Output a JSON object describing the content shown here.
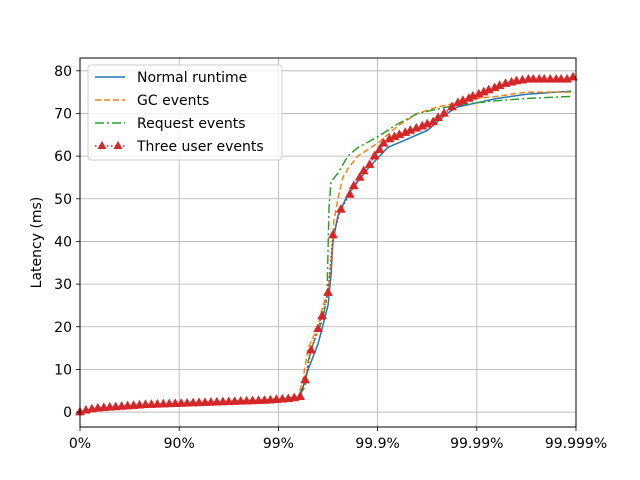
{
  "chart_data": {
    "type": "line",
    "title": "",
    "xlabel": "",
    "ylabel": "Latency (ms)",
    "x_scale": "percentile-log (nines)",
    "xlim": [
      0,
      5
    ],
    "ylim": [
      -3.5,
      83
    ],
    "x_ticks": [
      {
        "value": 0,
        "label": "0%"
      },
      {
        "value": 1,
        "label": "90%"
      },
      {
        "value": 2,
        "label": "99%"
      },
      {
        "value": 3,
        "label": "99.9%"
      },
      {
        "value": 4,
        "label": "99.99%"
      },
      {
        "value": 5,
        "label": "99.999%"
      }
    ],
    "y_ticks": [
      0,
      10,
      20,
      30,
      40,
      50,
      60,
      70,
      80
    ],
    "grid": true,
    "legend": {
      "position": "top-left"
    },
    "series": [
      {
        "name": "Normal runtime",
        "color": "#1f77b4",
        "style": "solid",
        "marker": "none",
        "points": [
          [
            0,
            0
          ],
          [
            0.5,
            1.2
          ],
          [
            1,
            2
          ],
          [
            1.5,
            2.5
          ],
          [
            2,
            3
          ],
          [
            2.2,
            3.5
          ],
          [
            2.25,
            6
          ],
          [
            2.3,
            10
          ],
          [
            2.4,
            16
          ],
          [
            2.5,
            25
          ],
          [
            2.53,
            32
          ],
          [
            2.55,
            40
          ],
          [
            2.6,
            46
          ],
          [
            2.7,
            51
          ],
          [
            2.8,
            54
          ],
          [
            2.9,
            57
          ],
          [
            3.1,
            62
          ],
          [
            3.3,
            64
          ],
          [
            3.5,
            66
          ],
          [
            3.6,
            68
          ],
          [
            3.7,
            70
          ],
          [
            3.8,
            71.5
          ],
          [
            4,
            72.5
          ],
          [
            4.2,
            73.5
          ],
          [
            4.5,
            74.5
          ],
          [
            4.8,
            75
          ],
          [
            4.95,
            75.2
          ]
        ]
      },
      {
        "name": "GC events",
        "color": "#ff7f0e",
        "style": "dashed",
        "marker": "none",
        "points": [
          [
            0,
            0
          ],
          [
            0.5,
            1.2
          ],
          [
            1,
            2
          ],
          [
            1.5,
            2.5
          ],
          [
            2,
            3
          ],
          [
            2.2,
            3.5
          ],
          [
            2.25,
            8
          ],
          [
            2.3,
            15
          ],
          [
            2.4,
            20
          ],
          [
            2.45,
            25
          ],
          [
            2.5,
            28
          ],
          [
            2.53,
            35
          ],
          [
            2.56,
            45
          ],
          [
            2.6,
            50
          ],
          [
            2.65,
            55
          ],
          [
            2.7,
            57
          ],
          [
            2.8,
            60
          ],
          [
            3,
            63
          ],
          [
            3.2,
            67
          ],
          [
            3.4,
            70
          ],
          [
            3.6,
            71.5
          ],
          [
            3.8,
            72.5
          ],
          [
            4,
            73.5
          ],
          [
            4.2,
            74
          ],
          [
            4.5,
            75
          ],
          [
            4.95,
            75
          ]
        ]
      },
      {
        "name": "Request events",
        "color": "#2ca02c",
        "style": "dashdot",
        "marker": "none",
        "points": [
          [
            0,
            0
          ],
          [
            0.5,
            1.2
          ],
          [
            1,
            2
          ],
          [
            1.5,
            2.5
          ],
          [
            2,
            3
          ],
          [
            2.2,
            3.5
          ],
          [
            2.27,
            6
          ],
          [
            2.3,
            12
          ],
          [
            2.35,
            16
          ],
          [
            2.4,
            19
          ],
          [
            2.45,
            22
          ],
          [
            2.49,
            27
          ],
          [
            2.51,
            48
          ],
          [
            2.53,
            54
          ],
          [
            2.6,
            56
          ],
          [
            2.7,
            60
          ],
          [
            2.8,
            62
          ],
          [
            3,
            64.5
          ],
          [
            3.2,
            67.5
          ],
          [
            3.4,
            70
          ],
          [
            3.6,
            71
          ],
          [
            3.8,
            72
          ],
          [
            4,
            72.5
          ],
          [
            4.2,
            73
          ],
          [
            4.5,
            73.5
          ],
          [
            4.95,
            74
          ]
        ]
      },
      {
        "name": "Three user events",
        "color": "#d62728",
        "style": "dotted",
        "marker": "triangle",
        "points": [
          [
            0,
            0
          ],
          [
            0.06,
            0.4
          ],
          [
            0.12,
            0.7
          ],
          [
            0.18,
            0.9
          ],
          [
            0.24,
            1.0
          ],
          [
            0.3,
            1.1
          ],
          [
            0.36,
            1.2
          ],
          [
            0.42,
            1.3
          ],
          [
            0.48,
            1.4
          ],
          [
            0.54,
            1.5
          ],
          [
            0.6,
            1.6
          ],
          [
            0.66,
            1.7
          ],
          [
            0.72,
            1.75
          ],
          [
            0.78,
            1.8
          ],
          [
            0.84,
            1.85
          ],
          [
            0.9,
            1.9
          ],
          [
            0.96,
            1.95
          ],
          [
            1.02,
            2.0
          ],
          [
            1.08,
            2.05
          ],
          [
            1.14,
            2.1
          ],
          [
            1.2,
            2.15
          ],
          [
            1.26,
            2.2
          ],
          [
            1.32,
            2.25
          ],
          [
            1.38,
            2.3
          ],
          [
            1.44,
            2.35
          ],
          [
            1.5,
            2.4
          ],
          [
            1.56,
            2.45
          ],
          [
            1.62,
            2.5
          ],
          [
            1.68,
            2.55
          ],
          [
            1.74,
            2.6
          ],
          [
            1.8,
            2.65
          ],
          [
            1.86,
            2.7
          ],
          [
            1.92,
            2.8
          ],
          [
            1.98,
            2.9
          ],
          [
            2.04,
            3.0
          ],
          [
            2.1,
            3.1
          ],
          [
            2.16,
            3.3
          ],
          [
            2.22,
            3.6
          ],
          [
            2.27,
            7.5
          ],
          [
            2.33,
            14.5
          ],
          [
            2.4,
            19.5
          ],
          [
            2.44,
            22.5
          ],
          [
            2.5,
            28
          ],
          [
            2.55,
            41.5
          ],
          [
            2.63,
            47.5
          ],
          [
            2.72,
            51
          ],
          [
            2.76,
            53
          ],
          [
            2.82,
            55
          ],
          [
            2.86,
            56.5
          ],
          [
            2.92,
            58
          ],
          [
            2.97,
            60
          ],
          [
            3.02,
            61.5
          ],
          [
            3.06,
            63
          ],
          [
            3.12,
            64
          ],
          [
            3.17,
            64.5
          ],
          [
            3.22,
            65
          ],
          [
            3.28,
            65.5
          ],
          [
            3.33,
            66
          ],
          [
            3.39,
            66.5
          ],
          [
            3.45,
            67
          ],
          [
            3.5,
            67.5
          ],
          [
            3.56,
            68
          ],
          [
            3.61,
            69
          ],
          [
            3.67,
            70
          ],
          [
            3.75,
            71.5
          ],
          [
            3.81,
            72.5
          ],
          [
            3.86,
            73
          ],
          [
            3.92,
            73.5
          ],
          [
            3.96,
            74
          ],
          [
            4.02,
            74.5
          ],
          [
            4.07,
            75
          ],
          [
            4.12,
            75.5
          ],
          [
            4.18,
            76
          ],
          [
            4.23,
            76.5
          ],
          [
            4.29,
            77
          ],
          [
            4.35,
            77.3
          ],
          [
            4.4,
            77.6
          ],
          [
            4.46,
            77.8
          ],
          [
            4.52,
            78
          ],
          [
            4.57,
            78
          ],
          [
            4.63,
            78
          ],
          [
            4.68,
            78
          ],
          [
            4.74,
            78
          ],
          [
            4.8,
            78
          ],
          [
            4.85,
            78
          ],
          [
            4.91,
            78
          ],
          [
            4.97,
            78.5
          ]
        ]
      }
    ]
  }
}
